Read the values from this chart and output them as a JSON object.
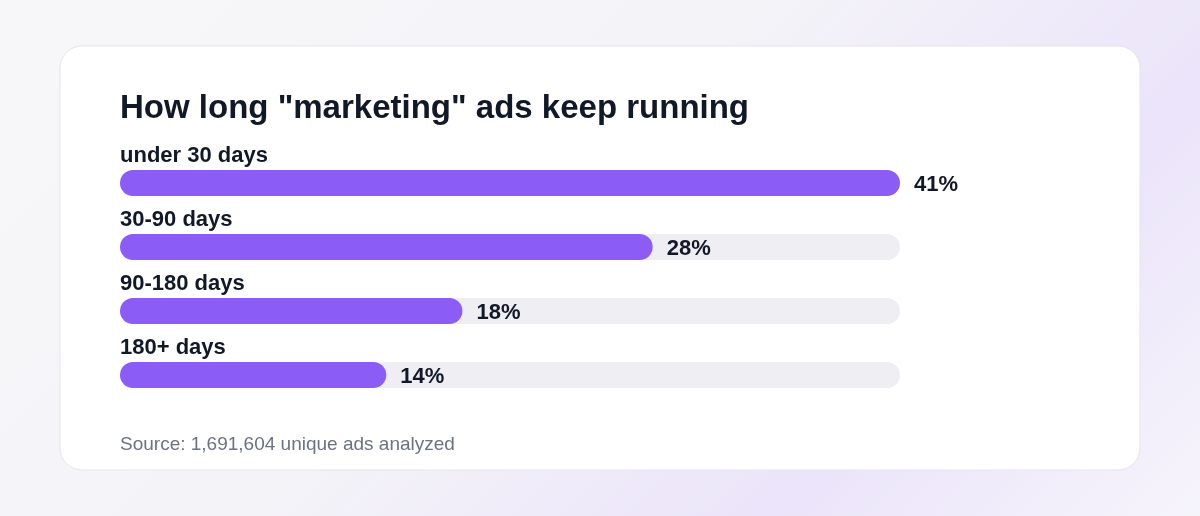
{
  "chart_data": {
    "type": "bar",
    "orientation": "horizontal",
    "title": "How long \"marketing\" ads keep running",
    "categories": [
      "under 30 days",
      "30-90 days",
      "90-180 days",
      "180+ days"
    ],
    "values": [
      41,
      28,
      18,
      14
    ],
    "color": "#8b5cf6",
    "data_labels": true,
    "value_labels": [
      "41%",
      "28%",
      "18%",
      "14%"
    ],
    "annotations": [
      "Source: 1,691,604 unique ads analyzed"
    ]
  }
}
